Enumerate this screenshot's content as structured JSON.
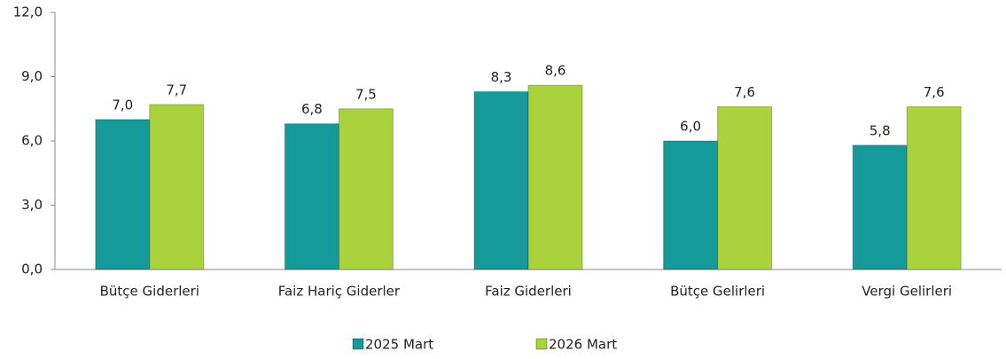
{
  "chart_data": {
    "type": "bar",
    "categories": [
      "Bütçe Giderleri",
      "Faiz Hariç Giderler",
      "Faiz Giderleri",
      "Bütçe Gelirleri",
      "Vergi Gelirleri"
    ],
    "series": [
      {
        "name": "2025 Mart",
        "color": "#169999",
        "values": [
          7.0,
          6.8,
          8.3,
          6.0,
          5.8
        ],
        "value_labels": [
          "7,0",
          "6,8",
          "8,3",
          "6,0",
          "5,8"
        ]
      },
      {
        "name": "2026 Mart",
        "color": "#a9d23c",
        "values": [
          7.7,
          7.5,
          8.6,
          7.6,
          7.6
        ],
        "value_labels": [
          "7,7",
          "7,5",
          "8,6",
          "7,6",
          "7,6"
        ]
      }
    ],
    "ylim": [
      0,
      12
    ],
    "yticks": [
      {
        "value": 0,
        "label": "0,0"
      },
      {
        "value": 3,
        "label": "3,0"
      },
      {
        "value": 6,
        "label": "6,0"
      },
      {
        "value": 9,
        "label": "9,0"
      },
      {
        "value": 12,
        "label": "12,0"
      }
    ],
    "grid": false,
    "legend": "bottom"
  }
}
